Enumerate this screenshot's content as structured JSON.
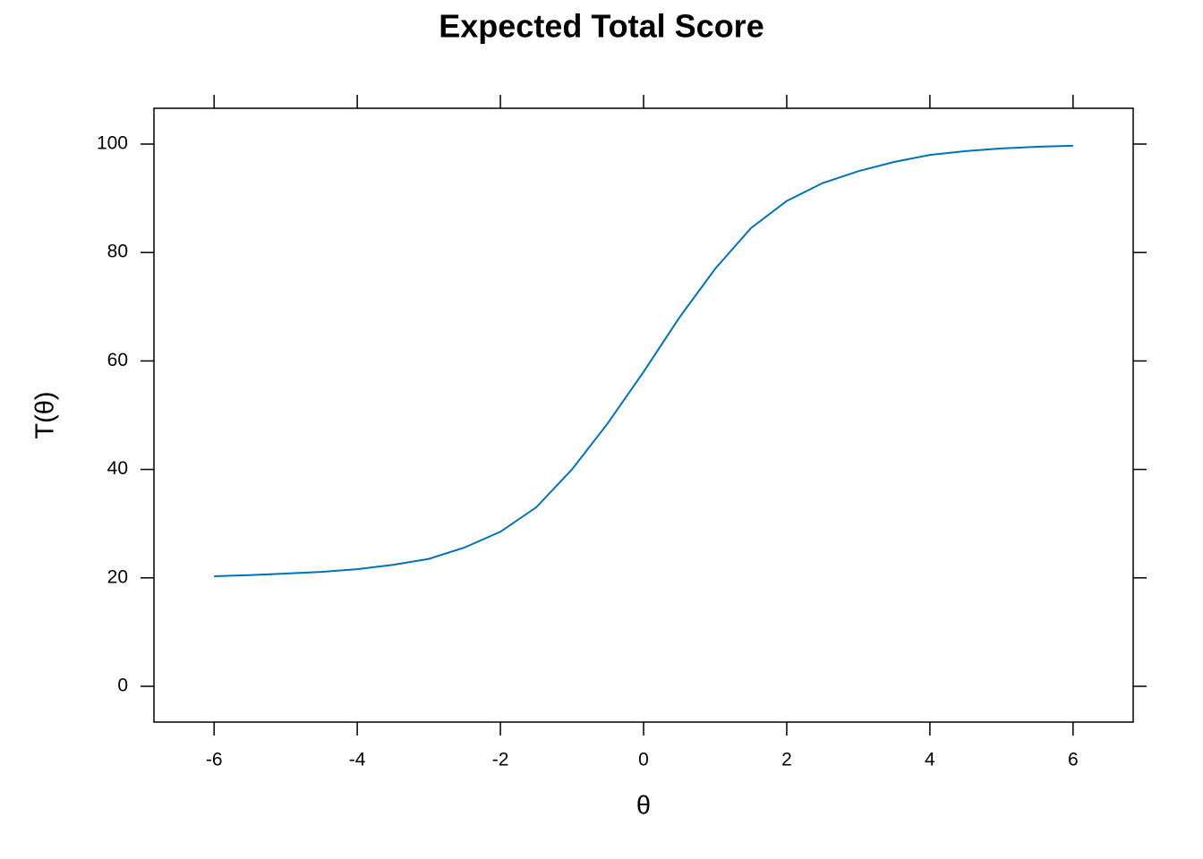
{
  "chart_data": {
    "type": "line",
    "title": "Expected Total Score",
    "x_label": "θ",
    "y_label": "T(θ)",
    "x": [
      -6,
      -5.5,
      -5,
      -4.5,
      -4,
      -3.5,
      -3,
      -2.5,
      -2,
      -1.5,
      -1,
      -0.5,
      0,
      0.5,
      1,
      1.5,
      2,
      2.5,
      3,
      3.5,
      4,
      4.5,
      5,
      5.5,
      6
    ],
    "series": [
      {
        "name": "T(θ)",
        "color": "#0072b2",
        "values": [
          20.3,
          20.5,
          20.8,
          21.1,
          21.6,
          22.4,
          23.5,
          25.6,
          28.5,
          33,
          40,
          48.5,
          58,
          68,
          77,
          84.5,
          89.5,
          92.8,
          95,
          96.7,
          98,
          98.7,
          99.2,
          99.5,
          99.7
        ]
      }
    ],
    "xlim": [
      -6.84,
      6.84
    ],
    "xticks": [
      -6,
      -4,
      -2,
      0,
      2,
      4,
      6
    ],
    "ylim": [
      -6.6,
      106.6
    ],
    "yticks": [
      0,
      20,
      40,
      60,
      80,
      100
    ]
  }
}
